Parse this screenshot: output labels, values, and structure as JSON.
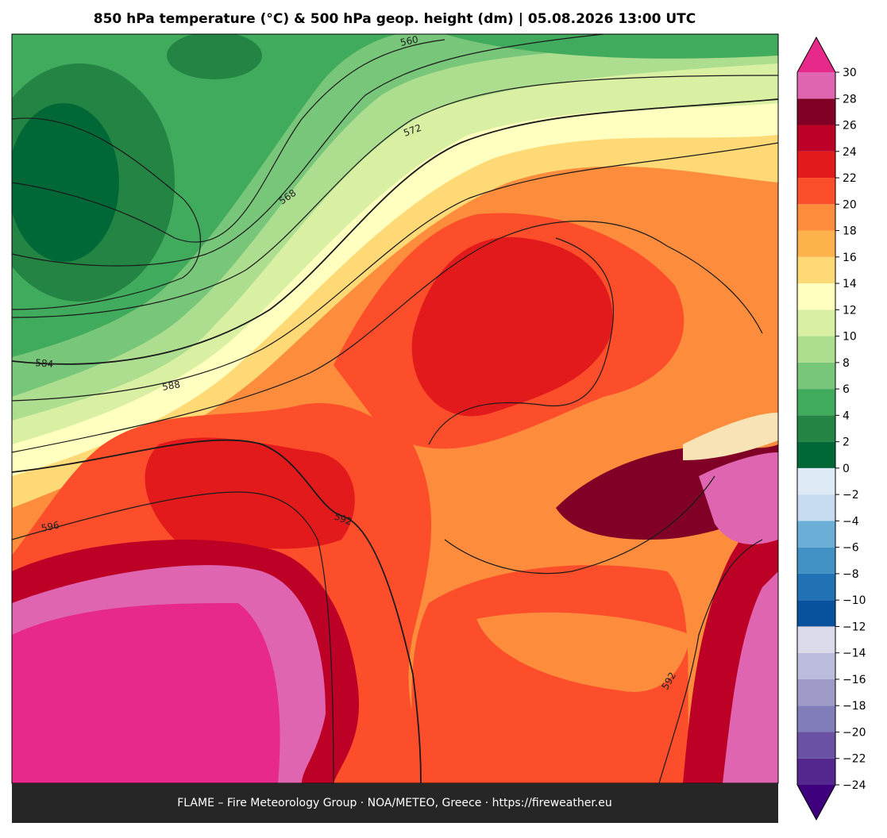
{
  "title": "850 hPa temperature (°C) & 500 hPa geop. height (dm)  |  05.08.2026 13:00 UTC",
  "footer": "FLAME – Fire Meteorology Group · NOA/METEO, Greece · https://fireweather.eu",
  "contour_labels": [
    "560",
    "572",
    "568",
    "584",
    "588",
    "596",
    "592",
    "592"
  ],
  "colorbar": {
    "ticks": [
      {
        "value": -24,
        "label": "−24"
      },
      {
        "value": -22,
        "label": "−22"
      },
      {
        "value": -20,
        "label": "−20"
      },
      {
        "value": -18,
        "label": "−18"
      },
      {
        "value": -16,
        "label": "−16"
      },
      {
        "value": -14,
        "label": "−14"
      },
      {
        "value": -12,
        "label": "−12"
      },
      {
        "value": -10,
        "label": "−10"
      },
      {
        "value": -8,
        "label": "−8"
      },
      {
        "value": -6,
        "label": "−6"
      },
      {
        "value": -4,
        "label": "−4"
      },
      {
        "value": -2,
        "label": "−2"
      },
      0,
      2,
      4,
      6,
      8,
      10,
      12,
      14,
      16,
      18,
      20,
      22,
      24,
      26,
      28,
      30
    ],
    "colors": [
      "#54278f",
      "#6a51a3",
      "#807dba",
      "#9e9ac8",
      "#bcbddc",
      "#dadaeb",
      "#08519c",
      "#2171b5",
      "#4292c6",
      "#6baed6",
      "#c6dbef",
      "#deebf7",
      "#006837",
      "#238443",
      "#41ab5d",
      "#78c679",
      "#addd8e",
      "#d9f0a3",
      "#ffffbf",
      "#fed976",
      "#feb24c",
      "#fd8d3c",
      "#fc4e2a",
      "#e31a1c",
      "#bd0026",
      "#800026",
      "#df65b0"
    ],
    "under": "#3f007d",
    "over": "#e7298a"
  }
}
